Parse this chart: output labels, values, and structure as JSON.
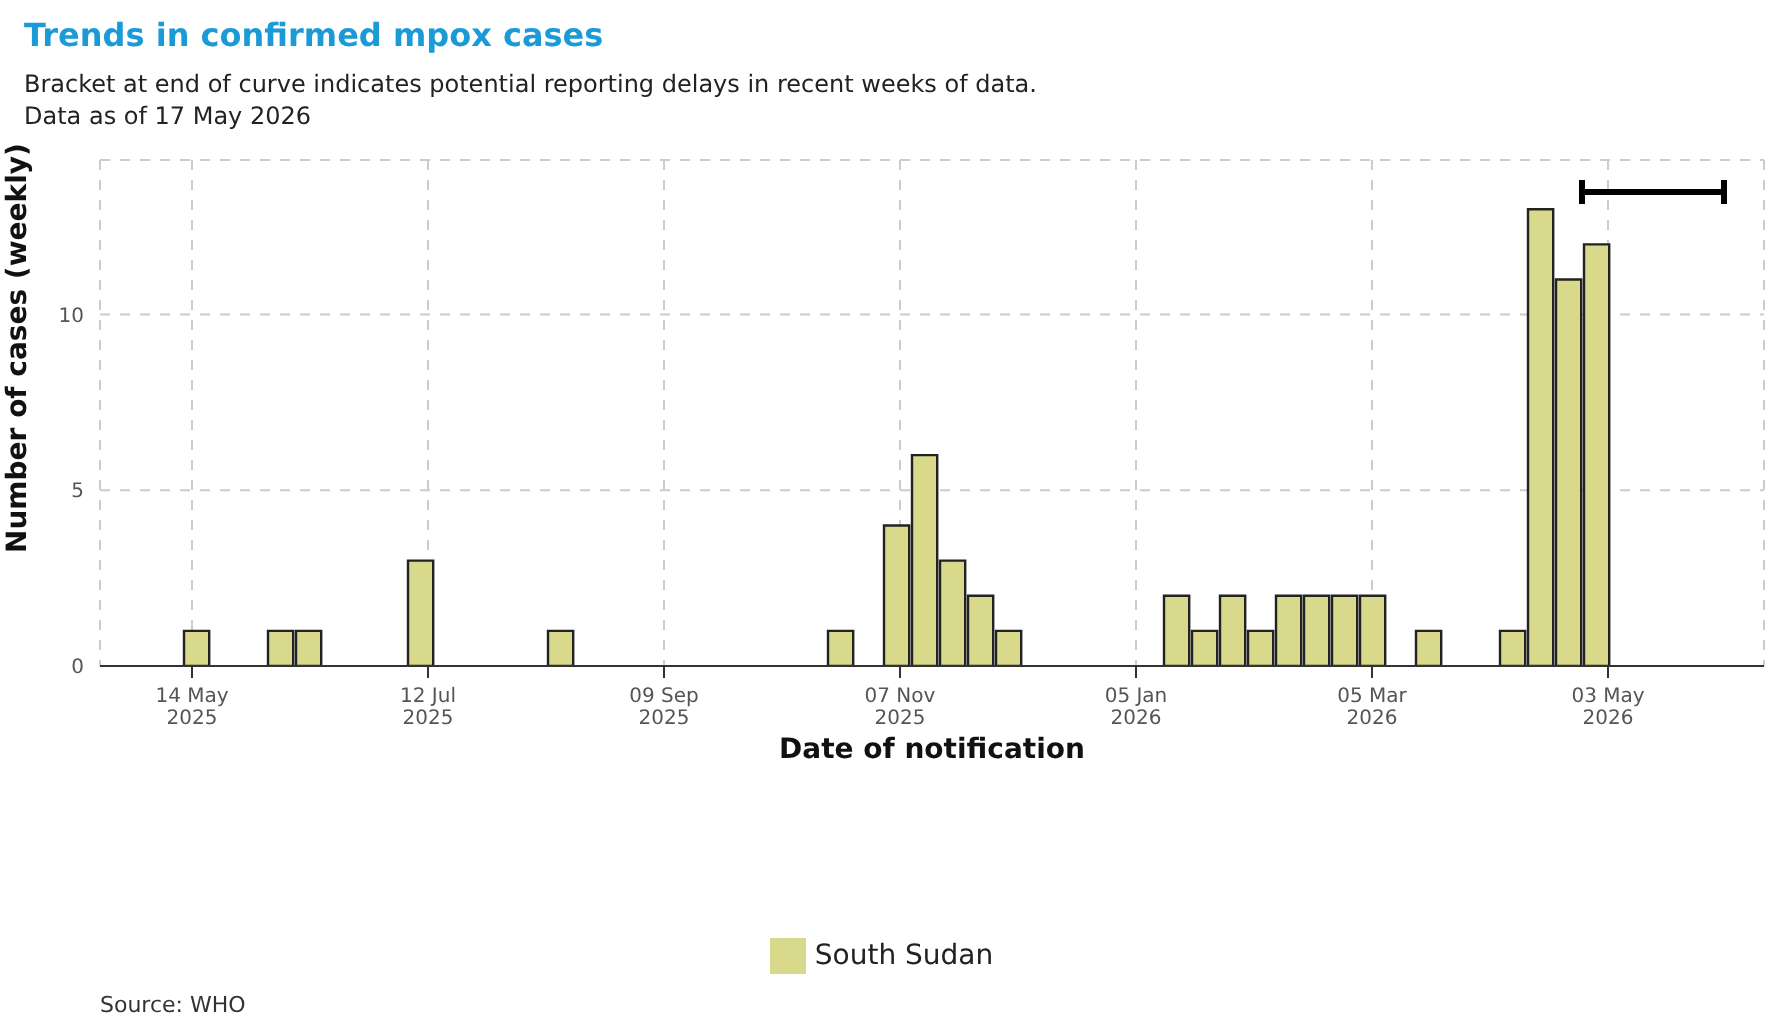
{
  "chart_data": {
    "type": "bar",
    "title": "Trends in confirmed mpox cases",
    "subtitle": "Bracket at end of curve indicates potential reporting delays in recent weeks of data.\nData as of 17 May 2026",
    "xlabel": "Date of notification",
    "ylabel": "Number of cases (weekly)",
    "x": [
      "2025-05-15",
      "2025-06-05",
      "2025-06-12",
      "2025-07-10",
      "2025-08-14",
      "2025-10-23",
      "2025-11-06",
      "2025-11-13",
      "2025-11-20",
      "2025-11-27",
      "2025-12-04",
      "2026-01-15",
      "2026-01-22",
      "2026-01-29",
      "2026-02-05",
      "2026-02-12",
      "2026-02-19",
      "2026-02-26",
      "2026-03-05",
      "2026-03-19",
      "2026-04-09",
      "2026-04-16",
      "2026-04-23",
      "2026-04-30"
    ],
    "series": [
      {
        "name": "South Sudan",
        "color": "#d9d98b",
        "values": [
          1,
          1,
          1,
          3,
          1,
          1,
          4,
          6,
          3,
          2,
          1,
          2,
          1,
          2,
          1,
          2,
          2,
          2,
          2,
          1,
          1,
          13,
          11,
          12
        ]
      }
    ],
    "xlim": [
      "2025-04-21",
      "2026-06-11"
    ],
    "xticks": [
      {
        "value": "2025-05-14",
        "label": "14 May 2025"
      },
      {
        "value": "2025-07-12",
        "label": "12 Jul 2025"
      },
      {
        "value": "2025-09-09",
        "label": "09 Sep 2025"
      },
      {
        "value": "2025-11-07",
        "label": "07 Nov 2025"
      },
      {
        "value": "2026-01-05",
        "label": "05 Jan 2026"
      },
      {
        "value": "2026-03-05",
        "label": "05 Mar 2026"
      },
      {
        "value": "2026-05-03",
        "label": "03 May 2026"
      }
    ],
    "ylim": [
      0,
      14.4
    ],
    "yticks": [
      0,
      5,
      10
    ],
    "grid": true,
    "legend": "bottom",
    "annotations": [
      "Source: WHO"
    ]
  }
}
